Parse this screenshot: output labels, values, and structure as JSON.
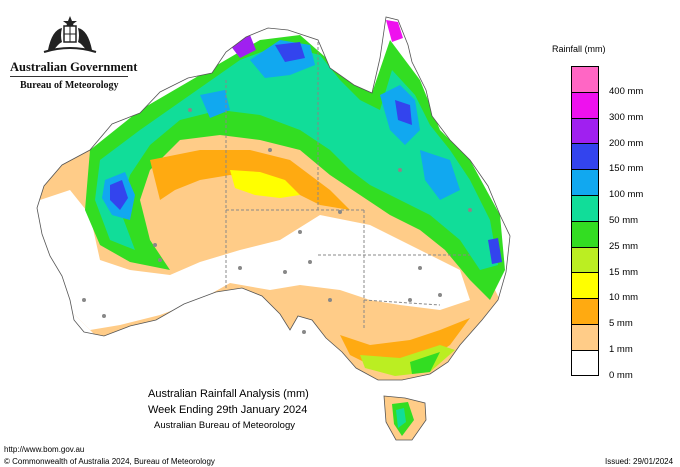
{
  "header": {
    "government": "Australian Government",
    "bureau": "Bureau of Meteorology"
  },
  "legend": {
    "title": "Rainfall (mm)",
    "items": [
      {
        "label": "400 mm",
        "color": "#ff66c4"
      },
      {
        "label": "300 mm",
        "color": "#ee11ee"
      },
      {
        "label": "200 mm",
        "color": "#a020f0"
      },
      {
        "label": "150 mm",
        "color": "#3344ee"
      },
      {
        "label": "100 mm",
        "color": "#11a8f0"
      },
      {
        "label": "50 mm",
        "color": "#11dd99"
      },
      {
        "label": "25 mm",
        "color": "#33dd22"
      },
      {
        "label": "15 mm",
        "color": "#bbee22"
      },
      {
        "label": "10 mm",
        "color": "#ffff00"
      },
      {
        "label": "5 mm",
        "color": "#ffaa11"
      },
      {
        "label": "1 mm",
        "color": "#ffcc88"
      },
      {
        "label": "0 mm",
        "color": "#ffffff"
      }
    ]
  },
  "map_title": {
    "line1": "Australian Rainfall Analysis (mm)",
    "line2": "Week Ending 29th January 2024",
    "line3": "Australian Bureau of Meteorology"
  },
  "footer": {
    "url": "http://www.bom.gov.au",
    "copyright": "© Commonwealth of Australia 2024, Bureau of Meteorology",
    "issued": "Issued: 29/01/2024"
  }
}
